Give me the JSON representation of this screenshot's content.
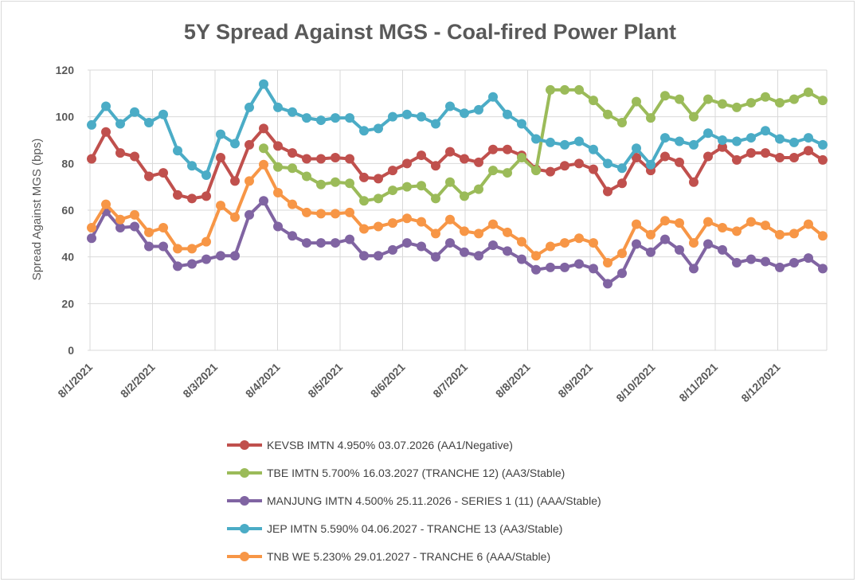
{
  "chart_data": {
    "type": "line",
    "title": "5Y Spread Against MGS - Coal-fired Power Plant",
    "xlabel": "",
    "ylabel": "Spread Against MGS (bps)",
    "ylim": [
      0,
      120
    ],
    "yticks": [
      "0",
      "20",
      "40",
      "60",
      "80",
      "100",
      "120"
    ],
    "xtick_labels": [
      "8/1/2021",
      "8/2/2021",
      "8/3/2021",
      "8/4/2021",
      "8/5/2021",
      "8/6/2021",
      "8/7/2021",
      "8/8/2021",
      "8/9/2021",
      "8/10/2021",
      "8/11/2021",
      "8/12/2021"
    ],
    "grid": true,
    "legend_position": "bottom",
    "series": [
      {
        "name": "KEVSB IMTN 4.950% 03.07.2026 (AA1/Negative)",
        "color": "#c0504d",
        "values": [
          82,
          93.5,
          84.5,
          83,
          74.5,
          76,
          66.5,
          65,
          66,
          82.5,
          72.5,
          88,
          95,
          87.5,
          84.5,
          82,
          82,
          82.5,
          82,
          74,
          73.5,
          77,
          80,
          83.5,
          79,
          85,
          82,
          80.5,
          86,
          86,
          83.5,
          77.5,
          76.5,
          79,
          80,
          77.5,
          68,
          71.5,
          82.5,
          77,
          83,
          80.5,
          72,
          83,
          87,
          81.5,
          84.5,
          84.5,
          82.5,
          82.5,
          85.5,
          81.5
        ]
      },
      {
        "name": "TBE IMTN 5.700% 16.03.2027 (TRANCHE 12)  (AA3/Stable)",
        "color": "#9bbb59",
        "values": [
          null,
          null,
          null,
          null,
          null,
          null,
          null,
          null,
          null,
          null,
          null,
          null,
          86.5,
          78.5,
          78,
          74.5,
          71,
          72,
          71.5,
          64,
          65,
          68.5,
          70,
          70.5,
          65,
          72,
          66,
          69,
          77,
          76,
          82.5,
          77,
          111.5,
          111.5,
          111.5,
          107,
          101,
          97.5,
          106.5,
          99.5,
          109,
          107.5,
          100,
          107.5,
          105.5,
          104,
          106,
          108.5,
          106,
          107.5,
          110.5,
          107
        ]
      },
      {
        "name": "MANJUNG IMTN 4.500% 25.11.2026 - SERIES 1 (11) (AAA/Stable)",
        "color": "#8064a2",
        "values": [
          48,
          59.5,
          52.5,
          53,
          44.5,
          44.5,
          36,
          37,
          39,
          40.5,
          40.5,
          58,
          64,
          53,
          49,
          46,
          46,
          46,
          47.5,
          40.5,
          40.5,
          43,
          46,
          44.5,
          40,
          46,
          42,
          40.5,
          45,
          42.5,
          39,
          34.5,
          35.5,
          35.5,
          37,
          35,
          28.5,
          33,
          45.5,
          42,
          47.5,
          43,
          35,
          45.5,
          43,
          37.5,
          39,
          38,
          35.5,
          37.5,
          39.5,
          35
        ]
      },
      {
        "name": "JEP IMTN 5.590% 04.06.2027 - TRANCHE 13 (AA3/Stable)",
        "color": "#4bacc6",
        "values": [
          96.5,
          104.5,
          97,
          102,
          97.5,
          101,
          85.5,
          79,
          75,
          92.5,
          88.5,
          104,
          114,
          104,
          102,
          99.5,
          98.5,
          99.5,
          99.5,
          94,
          95,
          100,
          101,
          100,
          97,
          104.5,
          101.5,
          103,
          108.5,
          101,
          97,
          90.5,
          89,
          88,
          89.5,
          86,
          80,
          78,
          86.5,
          79.5,
          91,
          89.5,
          88,
          93,
          90,
          89.5,
          91,
          94,
          90.5,
          89,
          91,
          88
        ]
      },
      {
        "name": "TNB WE 5.230% 29.01.2027 - TRANCHE 6 (AAA/Stable)",
        "color": "#f79646",
        "values": [
          52.5,
          62.5,
          56,
          58,
          50.5,
          52.5,
          43.5,
          43.5,
          46.5,
          62,
          57,
          72.5,
          79.5,
          67.5,
          62.5,
          59,
          58.5,
          58.5,
          59,
          52,
          53,
          54.5,
          56.5,
          55,
          50,
          56,
          51,
          50,
          54,
          50.5,
          46.5,
          40.5,
          44.5,
          46,
          48,
          46,
          37.5,
          41.5,
          54,
          49.5,
          55.5,
          54.5,
          46,
          55,
          52.5,
          51,
          55,
          53.5,
          49.5,
          50,
          54,
          49
        ]
      }
    ]
  }
}
